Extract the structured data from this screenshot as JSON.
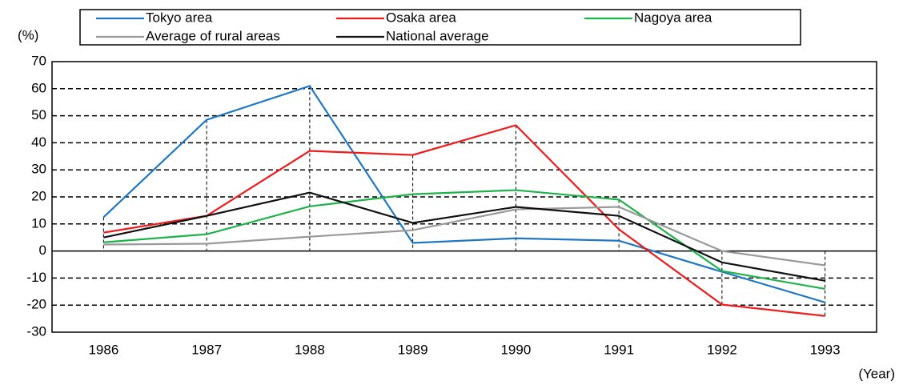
{
  "chart_data": {
    "type": "line",
    "y_label": "(%)",
    "x_label": "(Year)",
    "categories": [
      "1986",
      "1987",
      "1988",
      "1989",
      "1990",
      "1991",
      "1992",
      "1993"
    ],
    "series": [
      {
        "name": "Tokyo area",
        "color": "#1f77c4",
        "values": [
          12.5,
          48.5,
          61,
          3,
          4.7,
          3.8,
          -7.7,
          -19
        ]
      },
      {
        "name": "Osaka area",
        "color": "#ee1c1c",
        "values": [
          6.8,
          13,
          37,
          35.5,
          46.5,
          8,
          -19.8,
          -24
        ]
      },
      {
        "name": "Nagoya area",
        "color": "#1db34a",
        "values": [
          3.2,
          6.2,
          16.5,
          21,
          22.5,
          19,
          -7.4,
          -14
        ]
      },
      {
        "name": "Average of rural areas",
        "color": "#999999",
        "values": [
          2.4,
          2.7,
          5.3,
          7.7,
          15.4,
          16.3,
          0,
          -5.3
        ]
      },
      {
        "name": "National average",
        "color": "#111111",
        "values": [
          5,
          13,
          21.6,
          10.4,
          16.3,
          13,
          -4.2,
          -11
        ]
      }
    ],
    "ylim": [
      -30,
      70
    ],
    "yticks": [
      -30,
      -20,
      -10,
      0,
      10,
      20,
      30,
      40,
      50,
      60,
      70
    ],
    "grid": true
  }
}
